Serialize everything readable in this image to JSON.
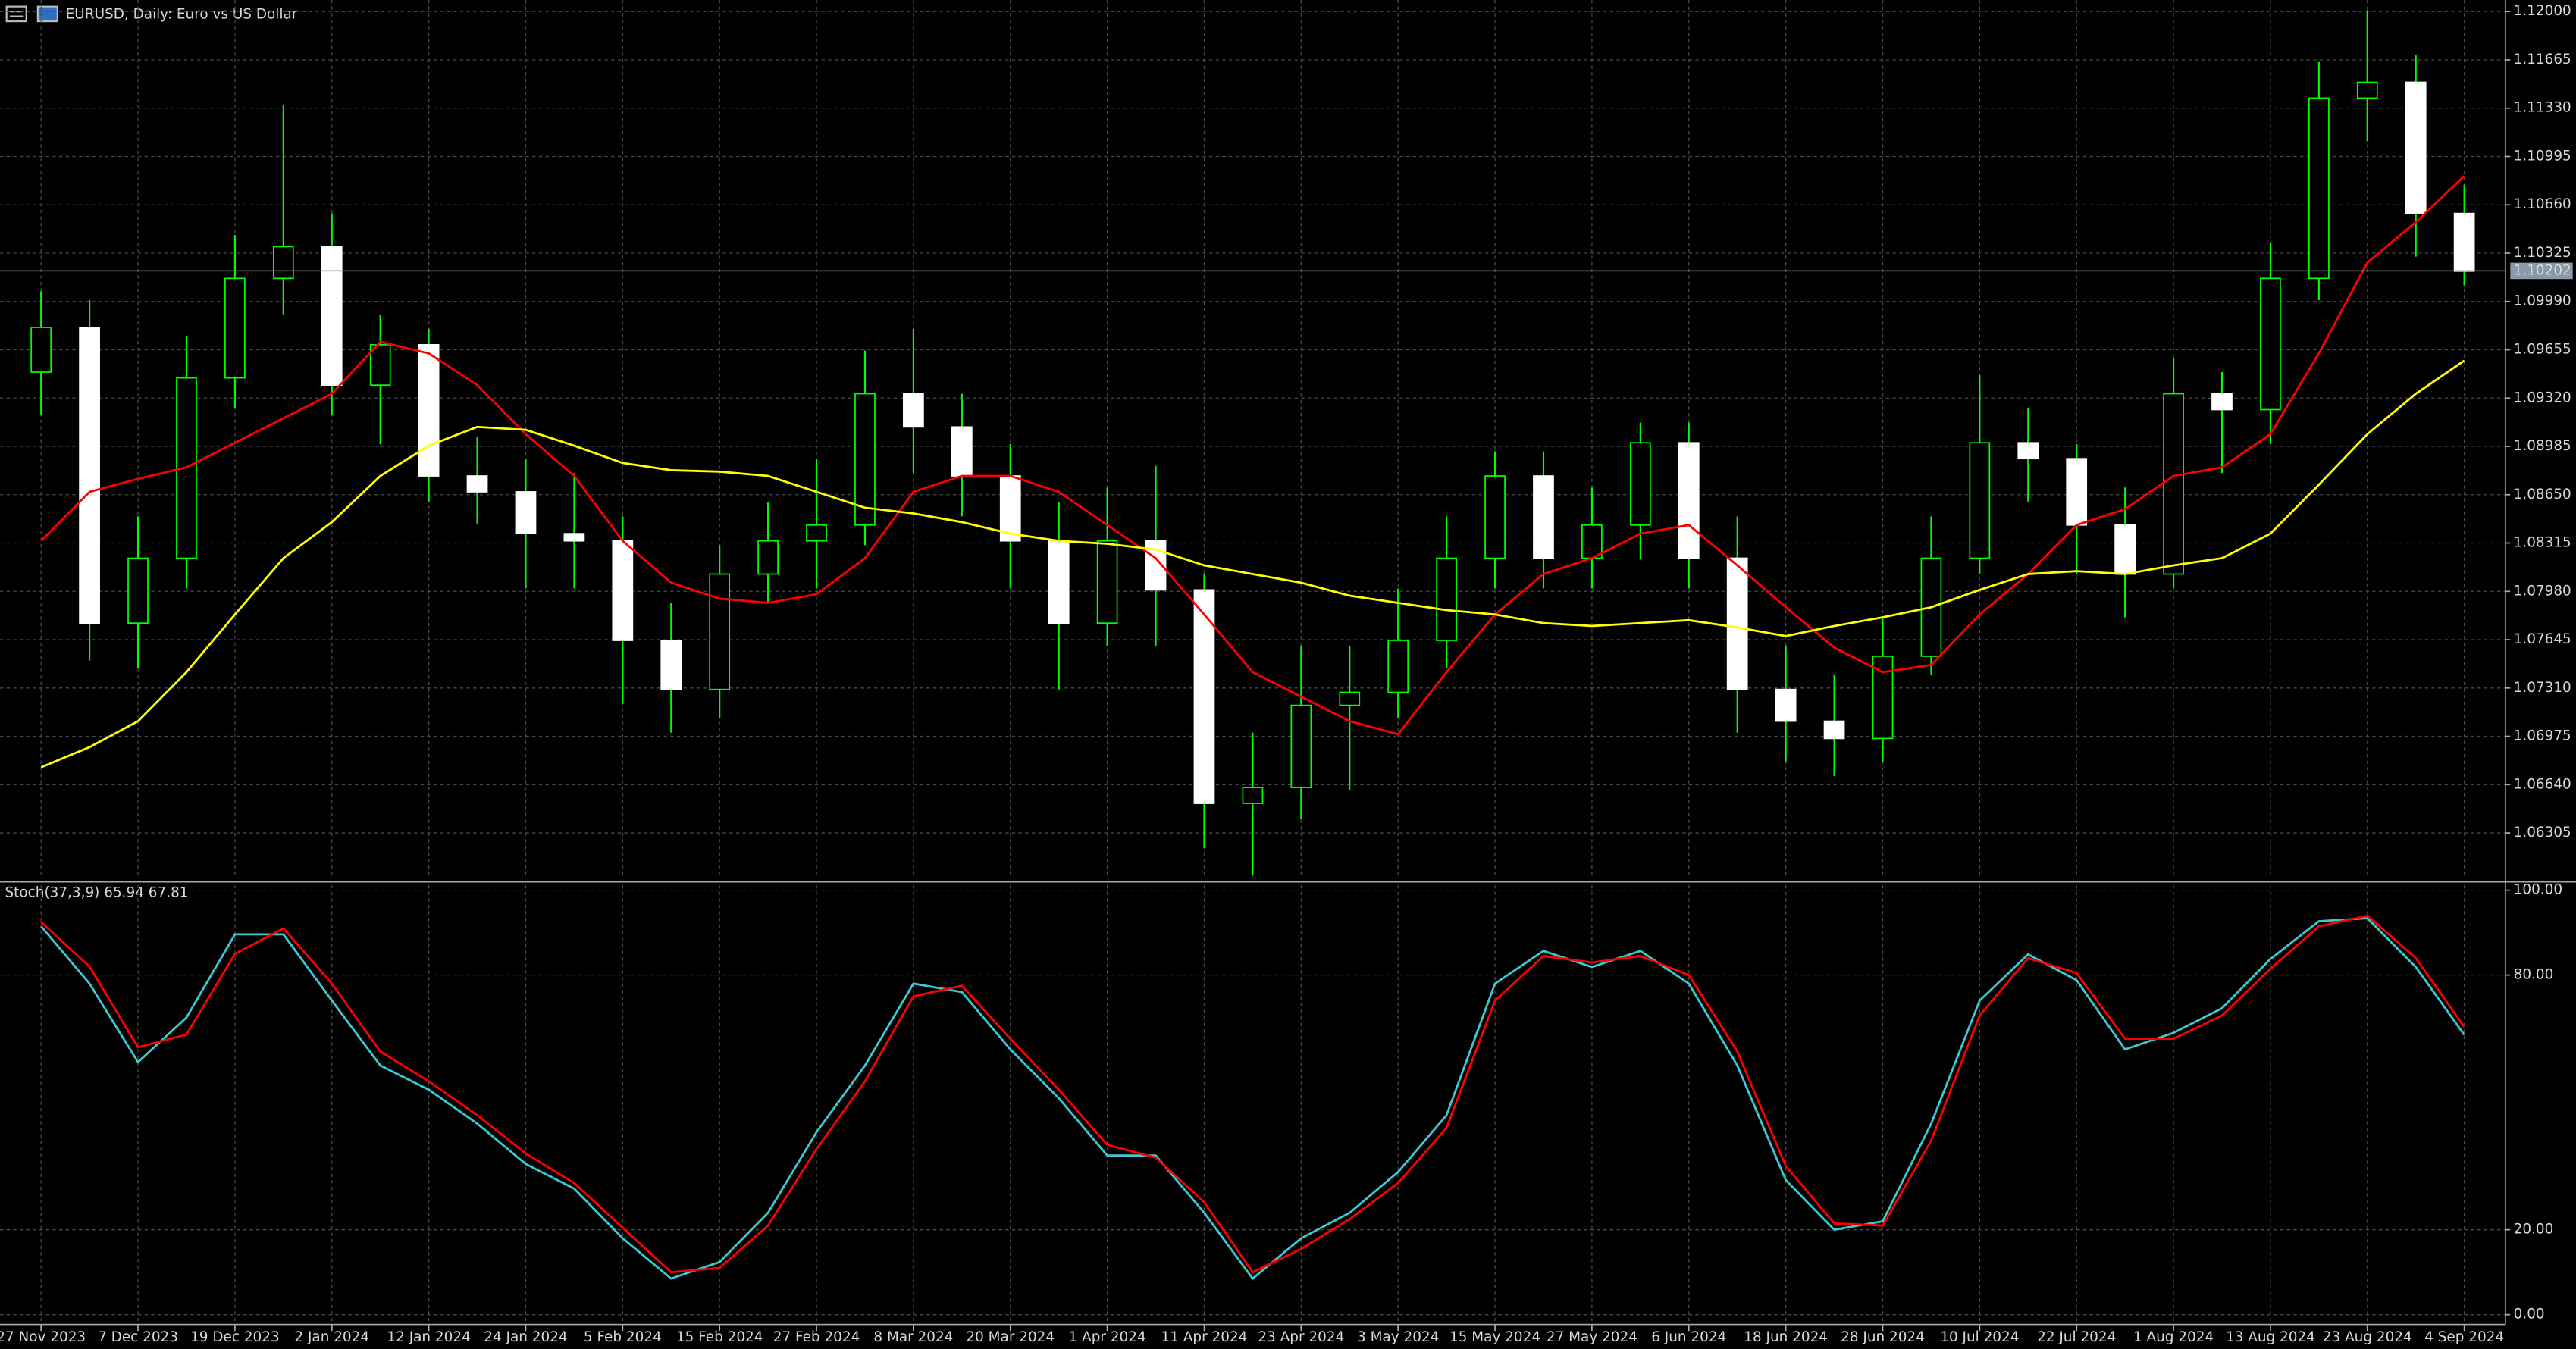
{
  "chart_data": [
    {
      "type": "candlestick",
      "title": "EURUSD, Daily:  Euro vs US Dollar",
      "categories": [
        "27 Nov 2023",
        null,
        "7 Dec 2023",
        null,
        "19 Dec 2023",
        null,
        "2 Jan 2024",
        null,
        "12 Jan 2024",
        null,
        "24 Jan 2024",
        null,
        "5 Feb 2024",
        null,
        "15 Feb 2024",
        null,
        "27 Feb 2024",
        null,
        "8 Mar 2024",
        null,
        "20 Mar 2024",
        null,
        "1 Apr 2024",
        null,
        "11 Apr 2024",
        null,
        "23 Apr 2024",
        null,
        "3 May 2024",
        null,
        "15 May 2024",
        null,
        "27 May 2024",
        null,
        "6 Jun 2024",
        null,
        "18 Jun 2024",
        null,
        "28 Jun 2024",
        null,
        "10 Jul 2024",
        null,
        "22 Jul 2024",
        null,
        "1 Aug 2024",
        null,
        "13 Aug 2024",
        null,
        "23 Aug 2024",
        null,
        "4 Sep 2024"
      ],
      "open": [
        1.095,
        1.0981,
        1.0776,
        1.0821,
        1.0946,
        1.1015,
        1.1037,
        1.0941,
        1.0969,
        1.0878,
        1.0867,
        1.0838,
        1.0833,
        1.0764,
        1.073,
        1.081,
        1.0833,
        1.0844,
        1.0935,
        1.0912,
        1.0878,
        1.0833,
        1.0776,
        1.0833,
        1.0799,
        1.0651,
        1.0662,
        1.0719,
        1.0728,
        1.0764,
        1.0821,
        1.0878,
        1.0821,
        1.0844,
        1.0901,
        1.0821,
        1.073,
        1.0708,
        1.0696,
        1.0753,
        1.0821,
        1.0901,
        1.089,
        1.0844,
        1.081,
        1.0935,
        1.0924,
        1.1015,
        1.114,
        1.1151,
        1.106
      ],
      "high": [
        1.1006,
        1.1,
        1.085,
        1.0975,
        1.1045,
        1.1135,
        1.106,
        1.099,
        1.098,
        1.0905,
        1.089,
        1.088,
        1.085,
        1.079,
        1.083,
        1.086,
        1.089,
        1.0965,
        1.098,
        1.0935,
        1.09,
        1.086,
        1.087,
        1.0885,
        1.081,
        1.07,
        1.076,
        1.076,
        1.08,
        1.085,
        1.0895,
        1.0895,
        1.087,
        1.0915,
        1.0915,
        1.085,
        1.076,
        1.074,
        1.078,
        1.085,
        1.0948,
        1.0925,
        1.09,
        1.087,
        1.096,
        1.095,
        1.104,
        1.1165,
        1.1201,
        1.117,
        1.108
      ],
      "low": [
        1.092,
        1.075,
        1.0745,
        1.08,
        1.0925,
        1.099,
        1.092,
        1.09,
        1.086,
        1.0845,
        1.08,
        1.08,
        1.072,
        1.07,
        1.071,
        1.079,
        1.08,
        1.083,
        1.088,
        1.085,
        1.08,
        1.073,
        1.076,
        1.076,
        1.062,
        1.0601,
        1.064,
        1.066,
        1.071,
        1.0745,
        1.08,
        1.08,
        1.08,
        1.082,
        1.08,
        1.07,
        1.068,
        1.067,
        1.068,
        1.074,
        1.081,
        1.086,
        1.081,
        1.078,
        1.08,
        1.088,
        1.09,
        1.1,
        1.111,
        1.103,
        1.101
      ],
      "close": [
        1.0981,
        1.0776,
        1.0821,
        1.0946,
        1.1015,
        1.1037,
        1.0941,
        1.0969,
        1.0878,
        1.0867,
        1.0838,
        1.0833,
        1.0764,
        1.073,
        1.081,
        1.0833,
        1.0844,
        1.0935,
        1.0912,
        1.0878,
        1.0833,
        1.0776,
        1.0833,
        1.0799,
        1.0651,
        1.0662,
        1.0719,
        1.0728,
        1.0764,
        1.0821,
        1.0878,
        1.0821,
        1.0844,
        1.0901,
        1.0821,
        1.073,
        1.0708,
        1.0696,
        1.0753,
        1.0821,
        1.0901,
        1.089,
        1.0844,
        1.081,
        1.0935,
        1.0924,
        1.1015,
        1.114,
        1.1151,
        1.106,
        1.102
      ],
      "up_color": "#00ff00",
      "down_color": "#ffffff",
      "overlays": [
        {
          "color": "#ff0000",
          "values": [
            1.0833,
            1.0867,
            1.0876,
            1.0884,
            1.0901,
            1.0918,
            1.0935,
            1.0971,
            1.0963,
            1.0941,
            1.0907,
            1.0878,
            1.0833,
            1.0804,
            1.0793,
            1.079,
            1.0796,
            1.0821,
            1.0867,
            1.0878,
            1.0878,
            1.0867,
            1.0844,
            1.0821,
            1.0782,
            1.0742,
            1.0725,
            1.0708,
            1.0699,
            1.0742,
            1.0782,
            1.081,
            1.0821,
            1.0838,
            1.0844,
            1.0816,
            1.0787,
            1.0759,
            1.0742,
            1.0747,
            1.0782,
            1.081,
            1.0844,
            1.0855,
            1.0878,
            1.0884,
            1.0907,
            1.0963,
            1.1026,
            1.1054,
            1.1086
          ]
        },
        {
          "color": "#ffff00",
          "values": [
            1.0676,
            1.069,
            1.0708,
            1.0742,
            1.0782,
            1.0821,
            1.0846,
            1.0878,
            1.0899,
            1.0912,
            1.091,
            1.0899,
            1.0887,
            1.0882,
            1.0881,
            1.0878,
            1.0867,
            1.0856,
            1.0852,
            1.0846,
            1.0838,
            1.0833,
            1.0831,
            1.0827,
            1.0816,
            1.081,
            1.0804,
            1.0795,
            1.079,
            1.0785,
            1.0782,
            1.0776,
            1.0774,
            1.0776,
            1.0778,
            1.0773,
            1.0767,
            1.0774,
            1.078,
            1.0787,
            1.0799,
            1.081,
            1.0812,
            1.081,
            1.0816,
            1.0821,
            1.0838,
            1.0872,
            1.0907,
            1.0935,
            1.0958
          ]
        }
      ],
      "bid": 1.10202,
      "ylim": [
        1.06,
        1.1208
      ],
      "yticks": [
        {
          "value": 1.12,
          "label": "1.12000"
        },
        {
          "value": 1.11665,
          "label": "1.11665"
        },
        {
          "value": 1.1133,
          "label": "1.11330"
        },
        {
          "value": 1.10995,
          "label": "1.10995"
        },
        {
          "value": 1.1066,
          "label": "1.10660"
        },
        {
          "value": 1.10325,
          "label": "1.10325"
        },
        {
          "value": 1.0999,
          "label": "1.09990"
        },
        {
          "value": 1.09655,
          "label": "1.09655"
        },
        {
          "value": 1.0932,
          "label": "1.09320"
        },
        {
          "value": 1.08985,
          "label": "1.08985"
        },
        {
          "value": 1.0865,
          "label": "1.08650"
        },
        {
          "value": 1.08315,
          "label": "1.08315"
        },
        {
          "value": 1.0798,
          "label": "1.07980"
        },
        {
          "value": 1.07645,
          "label": "1.07645"
        },
        {
          "value": 1.0731,
          "label": "1.07310"
        },
        {
          "value": 1.06975,
          "label": "1.06975"
        },
        {
          "value": 1.0664,
          "label": "1.06640"
        },
        {
          "value": 1.06305,
          "label": "1.06305"
        }
      ],
      "grid": true
    },
    {
      "type": "line",
      "title": "Stoch(37,3,9)",
      "series": [
        {
          "color": "#3ec8d0",
          "values": [
            91.5,
            78,
            59.5,
            70,
            89.6,
            89.6,
            74,
            58.7,
            53,
            45,
            35.5,
            29.7,
            18,
            8.5,
            12.4,
            24,
            43,
            58.7,
            78,
            76,
            62.5,
            51,
            37.5,
            37.5,
            24,
            8.5,
            18,
            24,
            33.6,
            47,
            78,
            85.7,
            81.9,
            85.7,
            78,
            58.7,
            31.7,
            20,
            22,
            45,
            74,
            84.9,
            78.8,
            62.5,
            66.4,
            72.2,
            83.8,
            92.7,
            93.4,
            81.9,
            65.94
          ]
        },
        {
          "color": "#ff0000",
          "values": [
            92.5,
            82,
            63,
            66,
            85,
            91,
            78,
            62,
            55,
            47,
            38,
            31,
            20.5,
            10,
            11,
            21,
            39,
            55,
            75,
            77.5,
            65,
            53,
            40,
            37,
            26.5,
            10,
            15.5,
            22.5,
            31,
            44,
            74,
            84.5,
            83,
            84.5,
            80,
            62,
            35,
            21.5,
            21,
            41,
            70.5,
            84,
            80.5,
            65,
            65,
            70.5,
            81.5,
            91.5,
            94,
            84,
            67.81
          ]
        }
      ],
      "ylim": [
        -2.3,
        101.2
      ],
      "yticks": [
        {
          "value": 100,
          "label": "100.00"
        },
        {
          "value": 80,
          "label": "80.00"
        },
        {
          "value": 20,
          "label": "20.00"
        },
        {
          "value": 0,
          "label": "0.00"
        }
      ],
      "grid": true
    }
  ]
}
